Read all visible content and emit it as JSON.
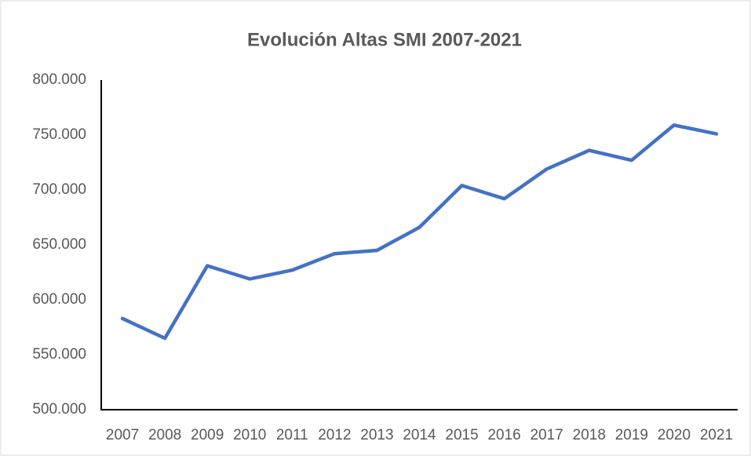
{
  "chart_data": {
    "type": "line",
    "title": "Evolución Altas SMI 2007-2021",
    "categories": [
      "2007",
      "2008",
      "2009",
      "2010",
      "2011",
      "2012",
      "2013",
      "2014",
      "2015",
      "2016",
      "2017",
      "2018",
      "2019",
      "2020",
      "2021"
    ],
    "values": [
      583000,
      565000,
      631000,
      619000,
      627000,
      642000,
      645000,
      666000,
      704000,
      692000,
      719000,
      736000,
      727000,
      759000,
      751000
    ],
    "color": "#4472c4",
    "ylim": [
      500000,
      800000
    ],
    "yticks": [
      {
        "value": 500000,
        "label": "500.000"
      },
      {
        "value": 550000,
        "label": "550.000"
      },
      {
        "value": 600000,
        "label": "600.000"
      },
      {
        "value": 650000,
        "label": "650.000"
      },
      {
        "value": 700000,
        "label": "700.000"
      },
      {
        "value": 750000,
        "label": "750.000"
      },
      {
        "value": 800000,
        "label": "800.000"
      }
    ],
    "grid": false
  }
}
